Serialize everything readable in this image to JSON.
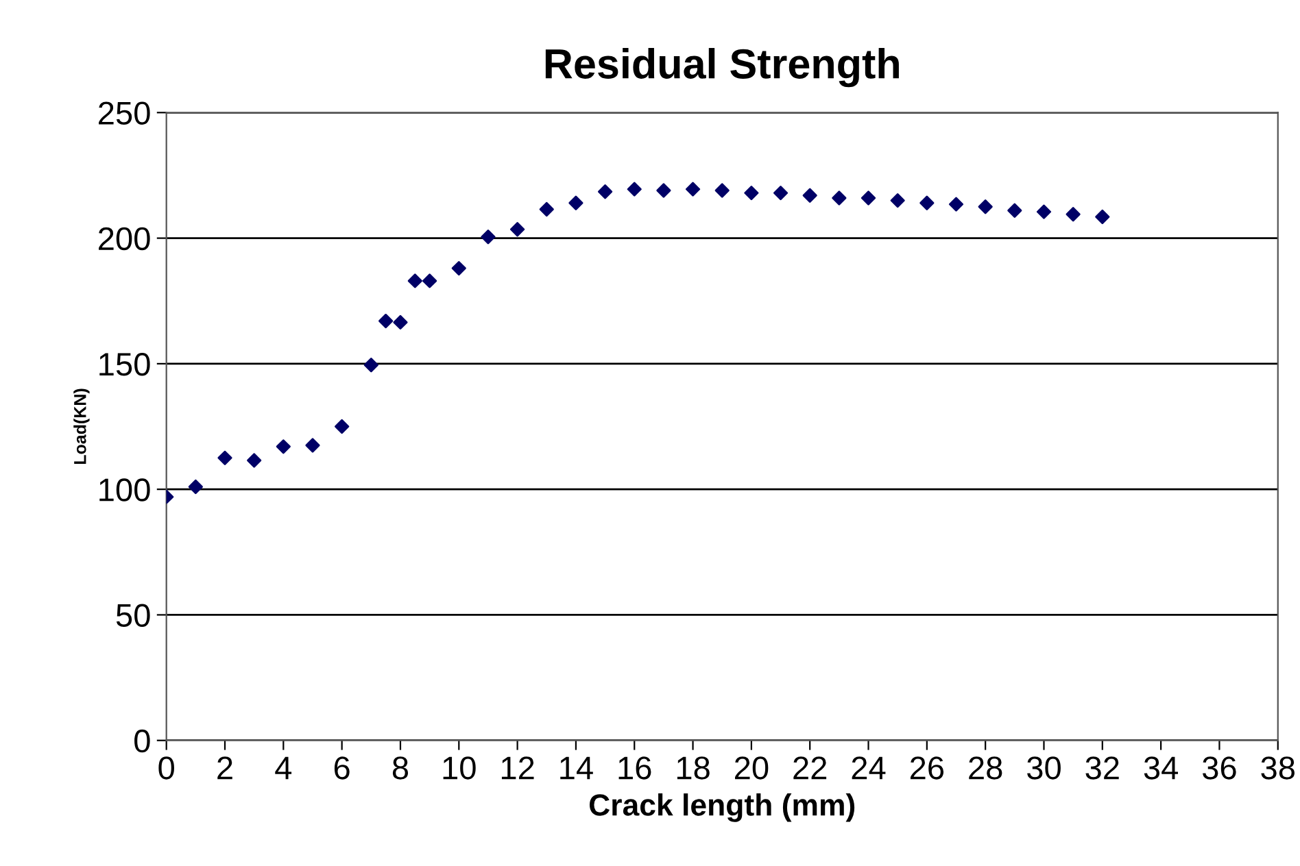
{
  "chart_data": {
    "type": "scatter",
    "title": "Residual Strength",
    "xlabel": "Crack length (mm)",
    "ylabel": "Load(KN)",
    "x": [
      0,
      1,
      2,
      3,
      4,
      5,
      6,
      7,
      7.5,
      8,
      8.5,
      9,
      10,
      11,
      12,
      13,
      14,
      15,
      16,
      17,
      18,
      19,
      20,
      21,
      22,
      23,
      24,
      25,
      26,
      27,
      28,
      29,
      30,
      31,
      32
    ],
    "series": [
      {
        "color": "#000066",
        "values": [
          97,
          101,
          112.5,
          111.5,
          117,
          117.5,
          125,
          149.5,
          167,
          166.5,
          183,
          183,
          188,
          200.5,
          203.5,
          211.5,
          214,
          218.5,
          219.5,
          219,
          219.5,
          219,
          218,
          218,
          217,
          216,
          216,
          215,
          214,
          213.5,
          212.5,
          211,
          210.5,
          209.5,
          208.5
        ]
      }
    ],
    "xlim": [
      0,
      38
    ],
    "xticks": [
      0,
      2,
      4,
      6,
      8,
      10,
      12,
      14,
      16,
      18,
      20,
      22,
      24,
      26,
      28,
      30,
      32,
      34,
      36,
      38
    ],
    "ylim": [
      0,
      250
    ],
    "yticks": [
      0,
      50,
      100,
      150,
      200,
      250
    ],
    "grid": "y",
    "marker": "diamond",
    "legend": false
  }
}
